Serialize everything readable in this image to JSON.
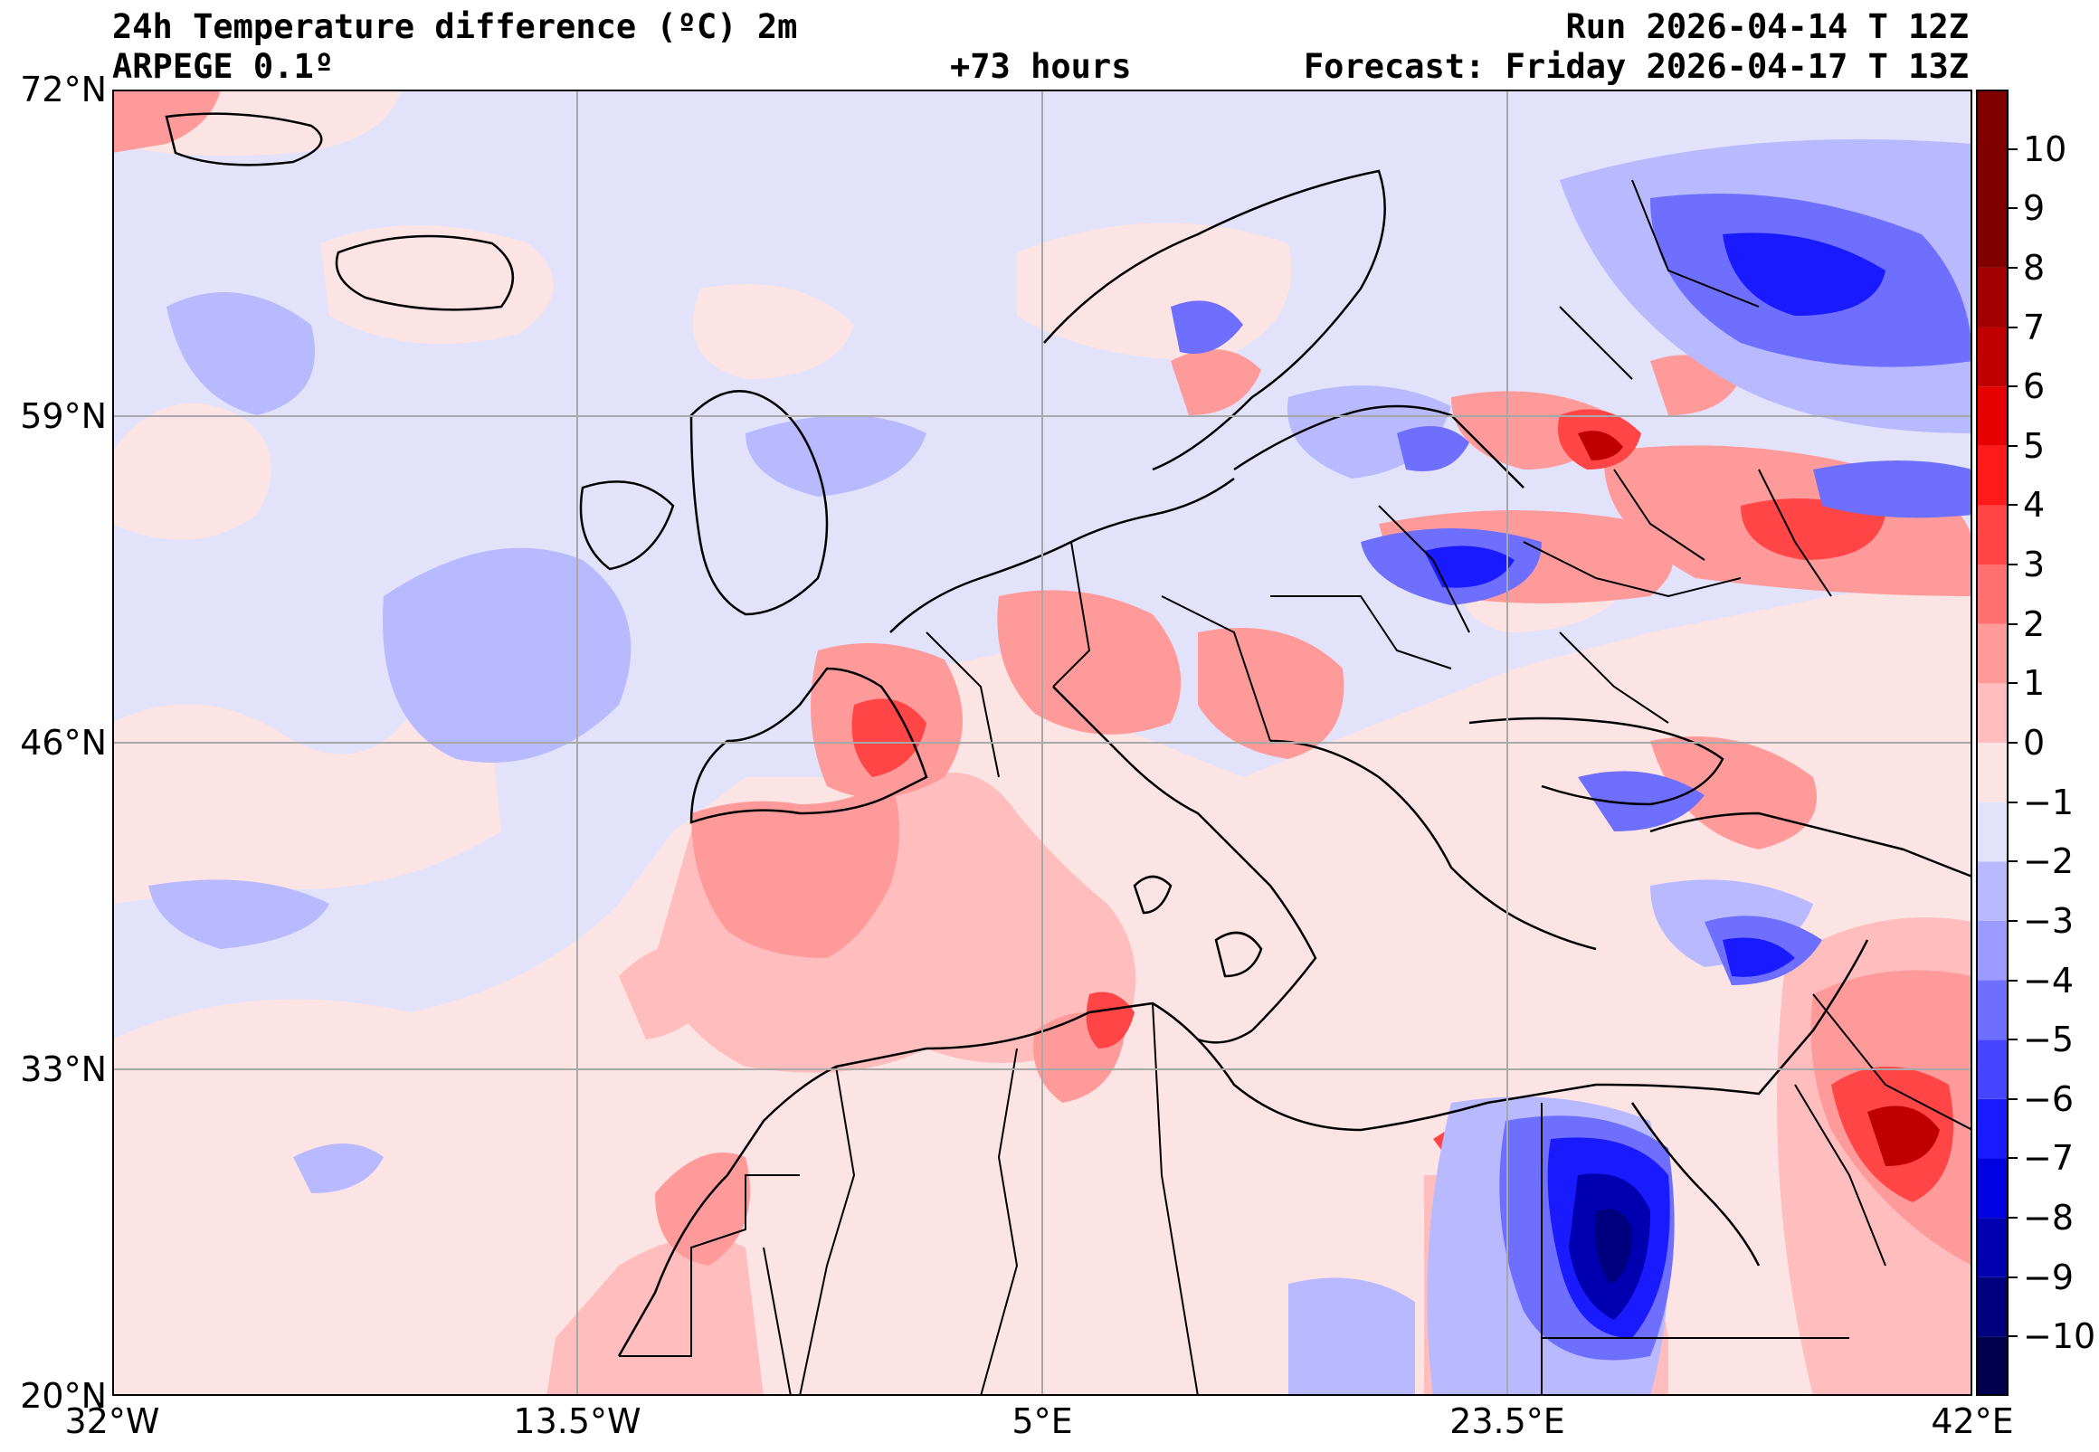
{
  "header": {
    "title": "24h Temperature difference (ºC) 2m",
    "model": "ARPEGE 0.1º",
    "lead": "+73 hours",
    "run": "Run 2026-04-14 T 12Z",
    "forecast": "Forecast: Friday 2026-04-17 T 13Z"
  },
  "axes": {
    "lat_labels": [
      "72°N",
      "59°N",
      "46°N",
      "33°N",
      "20°N"
    ],
    "lon_labels": [
      "32°W",
      "13.5°W",
      "5°E",
      "23.5°E",
      "42°E"
    ],
    "lat_range": [
      20,
      72
    ],
    "lon_range": [
      -32,
      42
    ],
    "grid": true
  },
  "colorbar": {
    "labels": [
      "10",
      "9",
      "8",
      "7",
      "6",
      "5",
      "4",
      "3",
      "2",
      "1",
      "0",
      "−1",
      "−2",
      "−3",
      "−4",
      "−5",
      "−6",
      "−7",
      "−8",
      "−9",
      "−10"
    ],
    "range": [
      -11,
      11
    ],
    "colors": [
      "#00004f",
      "#00007e",
      "#0000b0",
      "#0000e0",
      "#1a1aff",
      "#4545ff",
      "#6e6eff",
      "#9a9aff",
      "#b9b9ff",
      "#e2e2fb",
      "#fde4e4",
      "#ffbdbd",
      "#ff9a9a",
      "#ff7070",
      "#ff4545",
      "#ff1a1a",
      "#e60000",
      "#c00000",
      "#a00000",
      "#800000"
    ]
  },
  "colors": {
    "ocean_neg": "#e2e2fb",
    "warm_light": "#fde4e4",
    "warm": "#ff9a9a",
    "cold": "#6e6eff",
    "cold_deep": "#0000b0"
  }
}
